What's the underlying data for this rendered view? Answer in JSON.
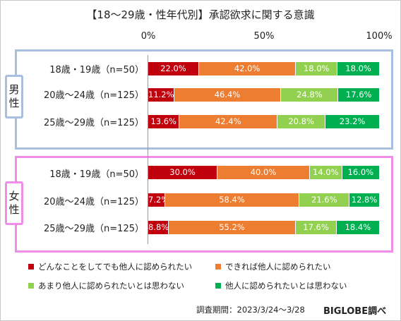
{
  "title": "【18～29歳・性年代別】承認欲求に関する意識",
  "axis_labels": [
    "0%",
    "50%",
    "100%"
  ],
  "colors": {
    "series": [
      "#c0000c",
      "#ed7d31",
      "#92d050",
      "#00b050"
    ],
    "male_border": "#a9bfdf",
    "female_border": "#f08de8"
  },
  "chart_data": {
    "type": "bar",
    "orientation": "horizontal",
    "stacked": true,
    "title": "【18～29歳・性年代別】承認欲求に関する意識",
    "xlim": [
      0,
      100
    ],
    "legend": "bottom",
    "series": [
      {
        "name": "どんなことをしてでも他人に認められたい",
        "color": "#c0000c"
      },
      {
        "name": "できれば他人に認められたい",
        "color": "#ed7d31"
      },
      {
        "name": "あまり他人に認められたいとは思わない",
        "color": "#92d050"
      },
      {
        "name": "他人に認められたいとは思わない",
        "color": "#00b050"
      }
    ],
    "groups": [
      {
        "label": [
          "男",
          "性"
        ],
        "rows": [
          {
            "label": "18歳・19歳（n=50）",
            "values": [
              22.0,
              42.0,
              18.0,
              18.0
            ],
            "labels": [
              "22.0%",
              "42.0%",
              "18.0%",
              "18.0%"
            ]
          },
          {
            "label": "20歳～24歳（n=125）",
            "values": [
              11.2,
              46.4,
              24.8,
              17.6
            ],
            "labels": [
              "11.2%",
              "46.4%",
              "24.8%",
              "17.6%"
            ]
          },
          {
            "label": "25歳～29歳（n=125）",
            "values": [
              13.6,
              42.4,
              20.8,
              23.2
            ],
            "labels": [
              "13.6%",
              "42.4%",
              "20.8%",
              "23.2%"
            ]
          }
        ]
      },
      {
        "label": [
          "女",
          "性"
        ],
        "rows": [
          {
            "label": "18歳・19歳（n=50）",
            "values": [
              30.0,
              40.0,
              14.0,
              16.0
            ],
            "labels": [
              "30.0%",
              "40.0%",
              "14.0%",
              "16.0%"
            ]
          },
          {
            "label": "20歳～24歳（n=125）",
            "values": [
              7.2,
              58.4,
              21.6,
              12.8
            ],
            "labels": [
              "7.2%",
              "58.4%",
              "21.6%",
              "12.8%"
            ]
          },
          {
            "label": "25歳～29歳（n=125）",
            "values": [
              8.8,
              55.2,
              17.6,
              18.4
            ],
            "labels": [
              "8.8%",
              "55.2%",
              "17.6%",
              "18.4%"
            ]
          }
        ]
      }
    ]
  },
  "footer": {
    "note": "調査期間：2023/3/24～3/28",
    "brand": "BIGLOBE調べ"
  }
}
